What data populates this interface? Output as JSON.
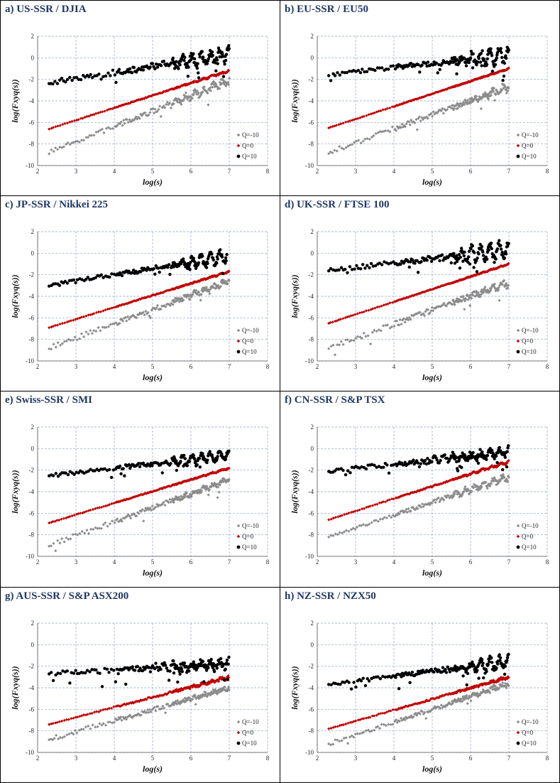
{
  "chart_data": [
    {
      "id": "a",
      "type": "scatter",
      "title": "a) US-SSR / DJIA",
      "xlabel": "log(s)",
      "ylabel": "log(Fxyq(s))",
      "xlim": [
        2,
        8
      ],
      "ylim": [
        -10,
        2
      ],
      "xticks": [
        "2",
        "3",
        "4",
        "5",
        "6",
        "7",
        "8"
      ],
      "yticks": [
        "-10",
        "-8",
        "-6",
        "-4",
        "-2",
        "0",
        "2"
      ],
      "series": [
        {
          "name": "Q=-10",
          "legend": "Q=-10",
          "color": "#8c8c8c",
          "shape": "diamond",
          "x_range": [
            2.3,
            7.0
          ],
          "start": -8.8,
          "end": -2.1,
          "start_noise": 0.35,
          "end_noise": 0.45,
          "osc": 0.25,
          "osc_start": 5.0,
          "outliers": 0.02
        },
        {
          "name": "Q=0",
          "legend": "Q=0",
          "color": "#c00000",
          "shape": "diamond",
          "x_range": [
            2.3,
            7.0
          ],
          "start": -6.6,
          "end": -1.2,
          "start_noise": 0.03,
          "end_noise": 0.12,
          "osc": 0.05,
          "osc_start": 5.5,
          "outliers": 0
        },
        {
          "name": "Q=10",
          "legend": "Q=10",
          "color": "#000000",
          "shape": "circle",
          "x_range": [
            2.3,
            7.0
          ],
          "start": -2.3,
          "end": 0.3,
          "start_noise": 0.35,
          "end_noise": 0.6,
          "osc": 0.55,
          "osc_start": 5.2,
          "outliers": 0.06
        }
      ]
    },
    {
      "id": "b",
      "type": "scatter",
      "title": "b) EU-SSR / EU50",
      "xlabel": "log(s)",
      "ylabel": "log(Fxyq(s))",
      "xlim": [
        2,
        8
      ],
      "ylim": [
        -10,
        2
      ],
      "xticks": [
        "2",
        "3",
        "4",
        "5",
        "6",
        "7",
        "8"
      ],
      "yticks": [
        "-10",
        "-8",
        "-6",
        "-4",
        "-2",
        "0",
        "2"
      ],
      "series": [
        {
          "name": "Q=-10",
          "legend": "Q=-10",
          "color": "#8c8c8c",
          "shape": "diamond",
          "x_range": [
            2.3,
            7.0
          ],
          "start": -8.8,
          "end": -2.7,
          "start_noise": 0.35,
          "end_noise": 0.5,
          "osc": 0.2,
          "osc_start": 5.8,
          "outliers": 0.02
        },
        {
          "name": "Q=0",
          "legend": "Q=0",
          "color": "#c00000",
          "shape": "diamond",
          "x_range": [
            2.3,
            7.0
          ],
          "start": -6.5,
          "end": -1.0,
          "start_noise": 0.03,
          "end_noise": 0.08,
          "osc": 0.04,
          "osc_start": 6.0,
          "outliers": 0
        },
        {
          "name": "Q=10",
          "legend": "Q=10",
          "color": "#000000",
          "shape": "circle",
          "x_range": [
            2.3,
            7.0
          ],
          "start": -1.6,
          "end": 0.3,
          "start_noise": 0.25,
          "end_noise": 0.6,
          "osc": 0.7,
          "osc_start": 5.5,
          "outliers": 0.06
        }
      ]
    },
    {
      "id": "c",
      "type": "scatter",
      "title": "c) JP-SSR / Nikkei 225",
      "xlabel": "log(s)",
      "ylabel": "log(Fxyq(s))",
      "xlim": [
        2,
        8
      ],
      "ylim": [
        -10,
        2
      ],
      "xticks": [
        "2",
        "3",
        "4",
        "5",
        "6",
        "7",
        "8"
      ],
      "yticks": [
        "-10",
        "-8",
        "-6",
        "-4",
        "-2",
        "0",
        "2"
      ],
      "series": [
        {
          "name": "Q=-10",
          "legend": "Q=-10",
          "color": "#8c8c8c",
          "shape": "diamond",
          "x_range": [
            2.3,
            7.0
          ],
          "start": -8.8,
          "end": -2.6,
          "start_noise": 0.35,
          "end_noise": 0.4,
          "osc": 0.15,
          "osc_start": 5.0,
          "outliers": 0.02
        },
        {
          "name": "Q=0",
          "legend": "Q=0",
          "color": "#c00000",
          "shape": "diamond",
          "x_range": [
            2.3,
            7.0
          ],
          "start": -6.9,
          "end": -1.7,
          "start_noise": 0.03,
          "end_noise": 0.1,
          "osc": 0.05,
          "osc_start": 6.0,
          "outliers": 0
        },
        {
          "name": "Q=10",
          "legend": "Q=10",
          "color": "#000000",
          "shape": "circle",
          "x_range": [
            2.3,
            6.95
          ],
          "start": -3.0,
          "end": -0.3,
          "start_noise": 0.3,
          "end_noise": 0.4,
          "osc": 0.6,
          "osc_start": 5.5,
          "outliers": 0.06
        }
      ]
    },
    {
      "id": "d",
      "type": "scatter",
      "title": "d) UK-SSR / FTSE 100",
      "xlabel": "log(s)",
      "ylabel": "log(Fxyq(s))",
      "xlim": [
        2,
        8
      ],
      "ylim": [
        -10,
        2
      ],
      "xticks": [
        "2",
        "3",
        "4",
        "5",
        "6",
        "7",
        "8"
      ],
      "yticks": [
        "-10",
        "-8",
        "-6",
        "-4",
        "-2",
        "0",
        "2"
      ],
      "series": [
        {
          "name": "Q=-10",
          "legend": "Q=-10",
          "color": "#8c8c8c",
          "shape": "diamond",
          "x_range": [
            2.3,
            7.0
          ],
          "start": -8.8,
          "end": -2.7,
          "start_noise": 0.35,
          "end_noise": 0.5,
          "osc": 0.25,
          "osc_start": 5.8,
          "outliers": 0.02
        },
        {
          "name": "Q=0",
          "legend": "Q=0",
          "color": "#c00000",
          "shape": "diamond",
          "x_range": [
            2.3,
            7.0
          ],
          "start": -6.5,
          "end": -1.0,
          "start_noise": 0.03,
          "end_noise": 0.08,
          "osc": 0.04,
          "osc_start": 6.0,
          "outliers": 0
        },
        {
          "name": "Q=10",
          "legend": "Q=10",
          "color": "#000000",
          "shape": "circle",
          "x_range": [
            2.3,
            7.0
          ],
          "start": -1.6,
          "end": 0.3,
          "start_noise": 0.25,
          "end_noise": 0.6,
          "osc": 0.7,
          "osc_start": 5.3,
          "outliers": 0.06
        }
      ]
    },
    {
      "id": "e",
      "type": "scatter",
      "title": "e) Swiss-SSR / SMI",
      "xlabel": "log(s)",
      "ylabel": "log(Fxyq(s))",
      "xlim": [
        2,
        8
      ],
      "ylim": [
        -10,
        2
      ],
      "xticks": [
        "2",
        "3",
        "4",
        "5",
        "6",
        "7",
        "8"
      ],
      "yticks": [
        "-10",
        "-8",
        "-6",
        "-4",
        "-2",
        "0",
        "2"
      ],
      "series": [
        {
          "name": "Q=-10",
          "legend": "Q=-10",
          "color": "#8c8c8c",
          "shape": "diamond",
          "x_range": [
            2.3,
            7.0
          ],
          "start": -9.0,
          "end": -2.9,
          "start_noise": 0.4,
          "end_noise": 0.35,
          "osc": 0.15,
          "osc_start": 5.2,
          "outliers": 0.02
        },
        {
          "name": "Q=0",
          "legend": "Q=0",
          "color": "#c00000",
          "shape": "diamond",
          "x_range": [
            2.3,
            7.0
          ],
          "start": -6.9,
          "end": -1.8,
          "start_noise": 0.03,
          "end_noise": 0.1,
          "osc": 0.06,
          "osc_start": 6.0,
          "outliers": 0
        },
        {
          "name": "Q=10",
          "legend": "Q=10",
          "color": "#000000",
          "shape": "circle",
          "x_range": [
            2.3,
            7.0
          ],
          "start": -2.5,
          "end": -0.6,
          "start_noise": 0.3,
          "end_noise": 0.35,
          "osc": 0.4,
          "osc_start": 5.0,
          "outliers": 0.05
        }
      ]
    },
    {
      "id": "f",
      "type": "scatter",
      "title": "f) CN-SSR / S&P TSX",
      "xlabel": "log(s)",
      "ylabel": "log(Fxyq(s))",
      "xlim": [
        2,
        8
      ],
      "ylim": [
        -10,
        2
      ],
      "xticks": [
        "2",
        "3",
        "4",
        "5",
        "6",
        "7",
        "8"
      ],
      "yticks": [
        "-10",
        "-8",
        "-6",
        "-4",
        "-2",
        "0",
        "2"
      ],
      "series": [
        {
          "name": "Q=-10",
          "legend": "Q=-10",
          "color": "#8c8c8c",
          "shape": "diamond",
          "x_range": [
            2.3,
            7.0
          ],
          "start": -8.2,
          "end": -2.6,
          "start_noise": 0.15,
          "end_noise": 0.4,
          "osc": 0.25,
          "osc_start": 5.0,
          "outliers": 0.01
        },
        {
          "name": "Q=0",
          "legend": "Q=0",
          "color": "#c00000",
          "shape": "diamond",
          "x_range": [
            2.3,
            7.0
          ],
          "start": -6.6,
          "end": -1.2,
          "start_noise": 0.03,
          "end_noise": 0.15,
          "osc": 0.1,
          "osc_start": 5.5,
          "outliers": 0
        },
        {
          "name": "Q=10",
          "legend": "Q=10",
          "color": "#000000",
          "shape": "circle",
          "x_range": [
            2.3,
            7.0
          ],
          "start": -2.1,
          "end": -0.3,
          "start_noise": 0.3,
          "end_noise": 0.5,
          "osc": 0.3,
          "osc_start": 4.5,
          "outliers": 0.08
        }
      ]
    },
    {
      "id": "g",
      "type": "scatter",
      "title": "g) AUS-SSR / S&P ASX200",
      "xlabel": "log(s)",
      "ylabel": "log(Fxyq(s))",
      "xlim": [
        2,
        8
      ],
      "ylim": [
        -10,
        2
      ],
      "xticks": [
        "2",
        "3",
        "4",
        "5",
        "6",
        "7",
        "8"
      ],
      "yticks": [
        "-10",
        "-8",
        "-6",
        "-4",
        "-2",
        "0",
        "2"
      ],
      "series": [
        {
          "name": "Q=-10",
          "legend": "Q=-10",
          "color": "#8c8c8c",
          "shape": "diamond",
          "x_range": [
            2.3,
            7.0
          ],
          "start": -8.8,
          "end": -4.0,
          "start_noise": 0.35,
          "end_noise": 0.3,
          "osc": 0.1,
          "osc_start": 5.5,
          "outliers": 0.02
        },
        {
          "name": "Q=0",
          "legend": "Q=0",
          "color": "#c00000",
          "shape": "diamond",
          "x_range": [
            2.3,
            7.0
          ],
          "start": -7.4,
          "end": -3.0,
          "start_noise": 0.03,
          "end_noise": 0.25,
          "osc": 0.1,
          "osc_start": 5.5,
          "outliers": 0
        },
        {
          "name": "Q=10",
          "legend": "Q=10",
          "color": "#000000",
          "shape": "circle",
          "x_range": [
            2.3,
            7.0
          ],
          "start": -2.7,
          "end": -1.8,
          "start_noise": 0.35,
          "end_noise": 0.6,
          "osc": 0.3,
          "osc_start": 4.5,
          "outliers": 0.08
        }
      ]
    },
    {
      "id": "h",
      "type": "scatter",
      "title": "h) NZ-SSR / NZX50",
      "xlabel": "log(s)",
      "ylabel": "log(Fxyq(s))",
      "xlim": [
        2,
        8
      ],
      "ylim": [
        -10,
        2
      ],
      "xticks": [
        "2",
        "3",
        "4",
        "5",
        "6",
        "7",
        "8"
      ],
      "yticks": [
        "-10",
        "-8",
        "-6",
        "-4",
        "-2",
        "0",
        "2"
      ],
      "series": [
        {
          "name": "Q=-10",
          "legend": "Q=-10",
          "color": "#8c8c8c",
          "shape": "diamond",
          "x_range": [
            2.3,
            7.0
          ],
          "start": -9.2,
          "end": -3.6,
          "start_noise": 0.3,
          "end_noise": 0.35,
          "osc": 0.15,
          "osc_start": 5.5,
          "outliers": 0.02
        },
        {
          "name": "Q=0",
          "legend": "Q=0",
          "color": "#c00000",
          "shape": "diamond",
          "x_range": [
            2.3,
            7.0
          ],
          "start": -7.8,
          "end": -3.0,
          "start_noise": 0.03,
          "end_noise": 0.2,
          "osc": 0.08,
          "osc_start": 6.0,
          "outliers": 0
        },
        {
          "name": "Q=10",
          "legend": "Q=10",
          "color": "#000000",
          "shape": "circle",
          "x_range": [
            2.3,
            7.0
          ],
          "start": -3.7,
          "end": -1.6,
          "start_noise": 0.25,
          "end_noise": 0.5,
          "osc": 0.5,
          "osc_start": 5.5,
          "outliers": 0.06
        }
      ]
    }
  ]
}
